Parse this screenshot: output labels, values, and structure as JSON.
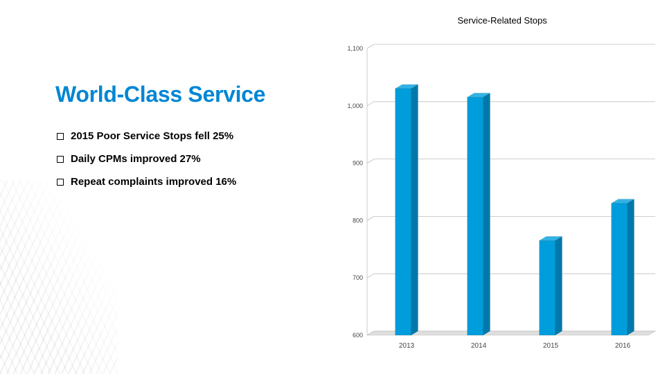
{
  "title": {
    "text": "World-Class Service",
    "color": "#0086d4",
    "fontsize": 32
  },
  "bullets": [
    {
      "text": "2015 Poor Service Stops fell 25%"
    },
    {
      "text": "Daily CPMs improved 27%"
    },
    {
      "text": "Repeat complaints improved 16%"
    }
  ],
  "chart": {
    "type": "bar-3d",
    "title": "Service-Related Stops",
    "title_fontsize": 13,
    "categories": [
      "2013",
      "2014",
      "2015",
      "2016"
    ],
    "values": [
      1030,
      1015,
      765,
      830
    ],
    "ylim": [
      600,
      1100
    ],
    "ytick_step": 100,
    "ytick_labels": [
      "600",
      "700",
      "800",
      "900",
      "1,000",
      "1,100"
    ],
    "bar_face_color": "#009ddc",
    "bar_top_color": "#33b2e4",
    "bar_side_color": "#0079aa",
    "grid_color": "#bfbfbf",
    "floor_color": "#bfbfbf",
    "background_color": "#ffffff",
    "tick_font_color": "#595959",
    "bar_width": 0.22,
    "depth_dx": 10,
    "depth_dy": -6
  }
}
